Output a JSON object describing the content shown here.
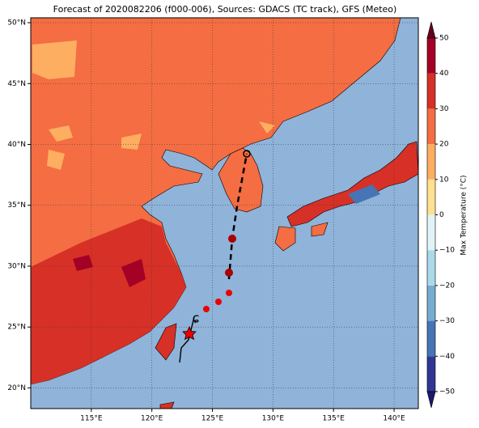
{
  "map": {
    "title": "Forecast of 2020082206 (f000-006), Sources: GDACS (TC track), GFS (Meteo)",
    "xlim": [
      110,
      142
    ],
    "ylim": [
      18.3,
      50.4
    ],
    "xticks": [
      {
        "value": 115,
        "label": "115°E"
      },
      {
        "value": 120,
        "label": "120°E"
      },
      {
        "value": 125,
        "label": "125°E"
      },
      {
        "value": 130,
        "label": "130°E"
      },
      {
        "value": 135,
        "label": "135°E"
      },
      {
        "value": 140,
        "label": "140°E"
      }
    ],
    "yticks": [
      {
        "value": 20,
        "label": "20°N"
      },
      {
        "value": 25,
        "label": "25°N"
      },
      {
        "value": 30,
        "label": "30°N"
      },
      {
        "value": 35,
        "label": "35°N"
      },
      {
        "value": 40,
        "label": "40°N"
      },
      {
        "value": 45,
        "label": "45°N"
      },
      {
        "value": 50,
        "label": "50°N"
      }
    ],
    "grid": true
  },
  "colorbar": {
    "label": "Max Temperature (°C)",
    "lim": [
      -50,
      50
    ],
    "ticks": [
      {
        "value": -50,
        "label": "−50"
      },
      {
        "value": -40,
        "label": "−40"
      },
      {
        "value": -30,
        "label": "−30"
      },
      {
        "value": -20,
        "label": "−20"
      },
      {
        "value": -10,
        "label": "−10"
      },
      0,
      10,
      20,
      30,
      40,
      50
    ],
    "colors": [
      "#313695",
      "#4575b4",
      "#74add1",
      "#abd9e9",
      "#e0f3f8",
      "#fee090",
      "#fdae61",
      "#f46d43",
      "#d73027",
      "#a50026"
    ],
    "under_color": "#1a1a6e",
    "over_color": "#67001f"
  }
}
